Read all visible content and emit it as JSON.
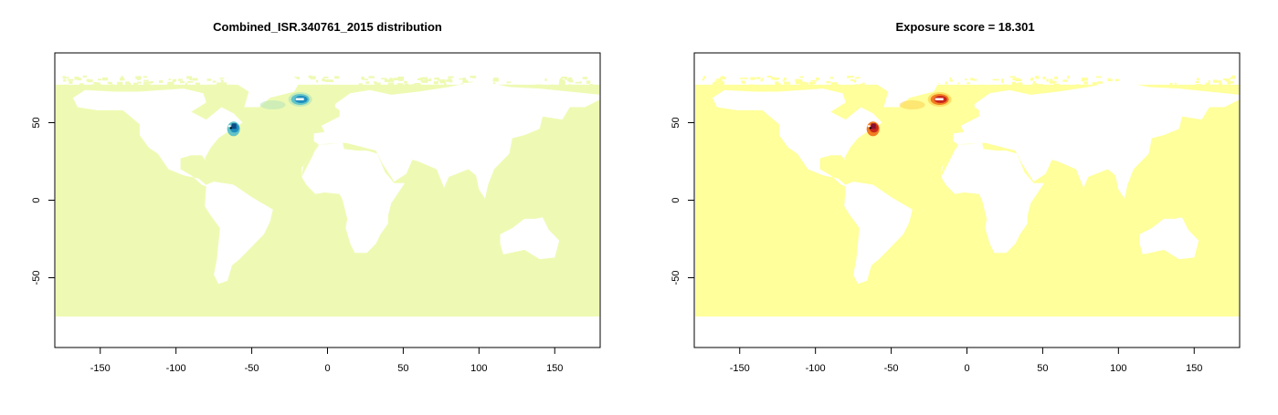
{
  "panels": [
    {
      "id": "left",
      "title": "Combined_ISR.340761_2015 distribution",
      "ocean_color": "#eefab3",
      "hotspot_colors": [
        "#0b4b86",
        "#1f8fbf",
        "#62c3c8",
        "#b6e4b9"
      ],
      "x_ticks": [
        -150,
        -100,
        -50,
        0,
        50,
        100,
        150
      ],
      "y_ticks": [
        50,
        0,
        -50
      ],
      "xlim": [
        -180,
        180
      ],
      "ylim": [
        -95,
        95
      ]
    },
    {
      "id": "right",
      "title": "Exposure score = 18.301",
      "ocean_color": "#ffff9b",
      "hotspot_colors": [
        "#8a0f2f",
        "#c8271c",
        "#f27b22",
        "#fbd24e"
      ],
      "x_ticks": [
        -150,
        -100,
        -50,
        0,
        50,
        100,
        150
      ],
      "y_ticks": [
        50,
        0,
        -50
      ],
      "xlim": [
        -180,
        180
      ],
      "ylim": [
        -95,
        95
      ]
    }
  ]
}
